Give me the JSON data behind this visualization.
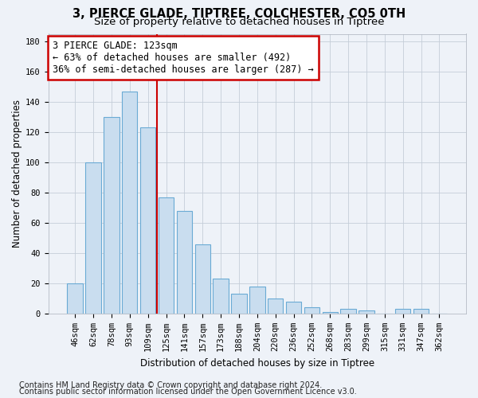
{
  "title1": "3, PIERCE GLADE, TIPTREE, COLCHESTER, CO5 0TH",
  "title2": "Size of property relative to detached houses in Tiptree",
  "xlabel": "Distribution of detached houses by size in Tiptree",
  "ylabel": "Number of detached properties",
  "categories": [
    "46sqm",
    "62sqm",
    "78sqm",
    "93sqm",
    "109sqm",
    "125sqm",
    "141sqm",
    "157sqm",
    "173sqm",
    "188sqm",
    "204sqm",
    "220sqm",
    "236sqm",
    "252sqm",
    "268sqm",
    "283sqm",
    "299sqm",
    "315sqm",
    "331sqm",
    "347sqm",
    "362sqm"
  ],
  "values": [
    20,
    100,
    130,
    147,
    123,
    77,
    68,
    46,
    23,
    13,
    18,
    10,
    8,
    4,
    1,
    3,
    2,
    0,
    3,
    3,
    0
  ],
  "bar_color": "#c9ddef",
  "bar_edge_color": "#6aaad4",
  "annotation_line1": "3 PIERCE GLADE: 123sqm",
  "annotation_line2": "← 63% of detached houses are smaller (492)",
  "annotation_line3": "36% of semi-detached houses are larger (287) →",
  "vline_index": 4.5,
  "vline_color": "#cc0000",
  "annotation_box_edgecolor": "#cc0000",
  "annotation_box_facecolor": "#ffffff",
  "ylim": [
    0,
    185
  ],
  "yticks": [
    0,
    20,
    40,
    60,
    80,
    100,
    120,
    140,
    160,
    180
  ],
  "footer1": "Contains HM Land Registry data © Crown copyright and database right 2024.",
  "footer2": "Contains public sector information licensed under the Open Government Licence v3.0.",
  "fig_facecolor": "#eef2f8",
  "axes_facecolor": "#eef2f8",
  "grid_color": "#c5cdd8",
  "title1_fontsize": 10.5,
  "title2_fontsize": 9.5,
  "annotation_fontsize": 8.5,
  "xlabel_fontsize": 8.5,
  "ylabel_fontsize": 8.5,
  "tick_fontsize": 7.5,
  "footer_fontsize": 7.0
}
